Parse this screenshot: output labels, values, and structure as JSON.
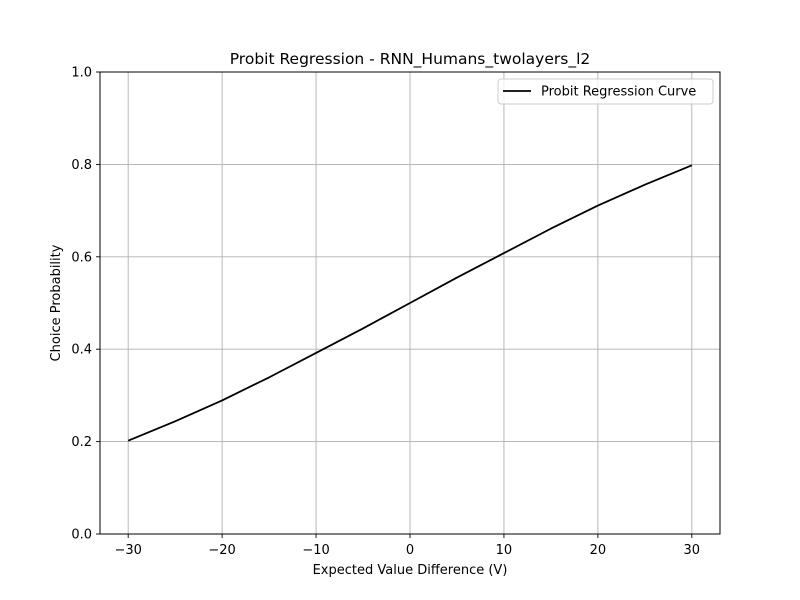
{
  "chart_data": {
    "type": "line",
    "title": "Probit Regression - RNN_Humans_twolayers_l2",
    "xlabel": "Expected Value Difference (V)",
    "ylabel": "Choice Probability",
    "xlim": [
      -33,
      33
    ],
    "ylim": [
      0,
      1
    ],
    "xticks": [
      -30,
      -20,
      -10,
      0,
      10,
      20,
      30
    ],
    "xtick_labels": [
      "−30",
      "−20",
      "−10",
      "0",
      "10",
      "20",
      "30"
    ],
    "yticks": [
      0,
      0.2,
      0.4,
      0.6,
      0.8,
      1.0
    ],
    "ytick_labels": [
      "0.0",
      "0.2",
      "0.4",
      "0.6",
      "0.8",
      "1.0"
    ],
    "grid": true,
    "legend_position": "top-right",
    "line_color": "#000000",
    "series": [
      {
        "name": "Probit Regression Curve",
        "x": [
          -30,
          -25,
          -20,
          -15,
          -10,
          -5,
          0,
          5,
          10,
          15,
          20,
          25,
          30
        ],
        "y": [
          0.202,
          0.244,
          0.289,
          0.339,
          0.392,
          0.445,
          0.5,
          0.555,
          0.608,
          0.661,
          0.711,
          0.756,
          0.798
        ]
      }
    ]
  }
}
